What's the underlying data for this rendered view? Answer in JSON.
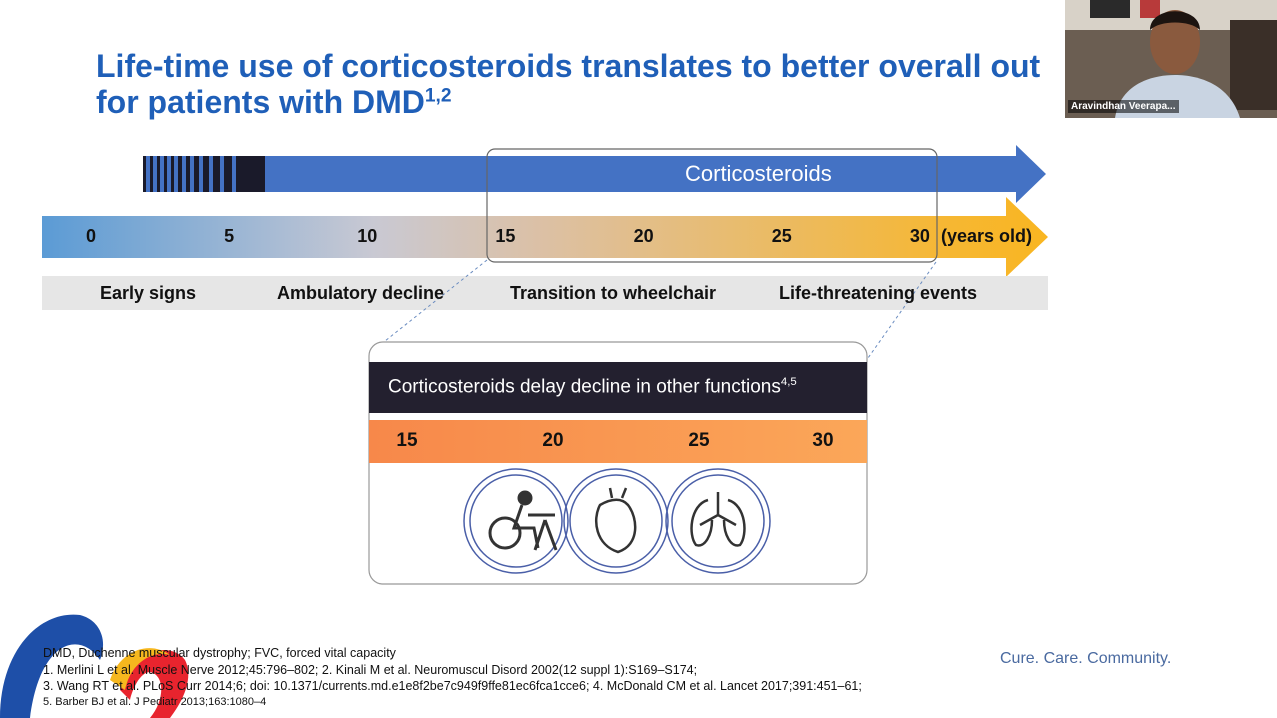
{
  "slide": {
    "title_line1": "Life-time use of corticosteroids translates to better overall out",
    "title_line2": "for patients with DMD",
    "title_sup": "1,2",
    "arrow_label": "Corticosteroids",
    "ages": [
      0,
      5,
      10,
      15,
      20,
      25,
      30
    ],
    "age_unit": "(years old)",
    "stages": [
      "Early signs",
      "Ambulatory decline",
      "Transition to wheelchair",
      "Life-threatening events"
    ],
    "box": {
      "title": "Corticosteroids delay decline in other functions",
      "title_sup": "4,5",
      "ages": [
        15,
        20,
        25,
        30
      ]
    },
    "footnotes": [
      "DMD, Duchenne muscular dystrophy; FVC, forced vital capacity",
      "1. Merlini L et al. Muscle Nerve 2012;45:796–802; 2. Kinali M et al. Neuromuscul Disord 2002(12 suppl 1):S169–S174;",
      "3. Wang RT et al. PLoS Curr 2014;6; doi: 10.1371/currents.md.e1e8f2be7c949f9ffe81ec6fca1cce6; 4. McDonald CM et al. Lancet 2017;391:451–61;",
      "5. Barber BJ et al. J Pediatr 2013;163:1080–4"
    ],
    "tagline": "Cure. Care. Community."
  },
  "webcam": {
    "name": "Aravindhan Veerapa..."
  }
}
